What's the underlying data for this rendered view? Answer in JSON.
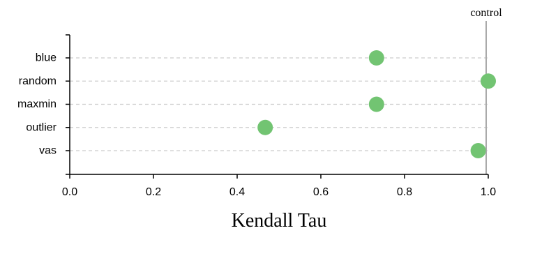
{
  "chart_data": {
    "type": "scatter",
    "title": "",
    "xlabel": "Kendall Tau",
    "ylabel": "",
    "xlim": [
      0,
      1
    ],
    "xticks": [
      "0.0",
      "0.2",
      "0.4",
      "0.6",
      "0.8",
      "1.0"
    ],
    "xtick_values": [
      0,
      0.2,
      0.4,
      0.6,
      0.8,
      1.0
    ],
    "categories": [
      "blue",
      "random",
      "maxmin",
      "outlier",
      "vas"
    ],
    "values": [
      0.733,
      1.0,
      0.733,
      0.467,
      0.976
    ],
    "reference_line": {
      "label": "control",
      "x": 0.995
    },
    "grid": "horizontal dashed per category",
    "colors": {
      "point": "#72c472",
      "grid": "#cccccc",
      "reference": "#aaaaaa",
      "axis": "#000000"
    }
  }
}
